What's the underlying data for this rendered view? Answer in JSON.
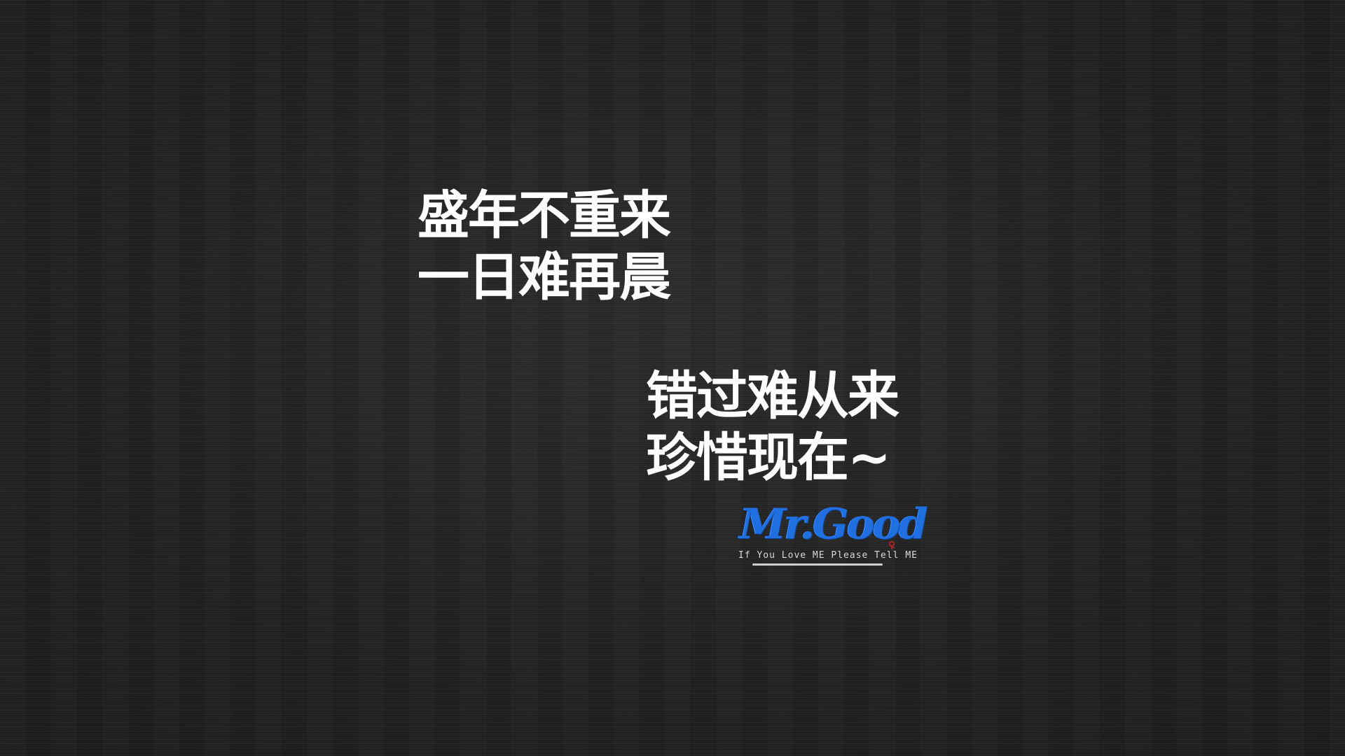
{
  "poem_top": {
    "line1": "盛年不重来",
    "line2": "一日难再晨"
  },
  "poem_bottom": {
    "line1": "错过难从来",
    "line2": "珍惜现在~"
  },
  "logo": {
    "name": "Mr.Good",
    "tagline": "If You Love ME Please Tell ME",
    "name_color": "#1f6fe0",
    "mark_color": "#c8202a",
    "mark_icon": "rose-icon"
  },
  "colors": {
    "background": "#262626",
    "text": "#ffffff"
  }
}
